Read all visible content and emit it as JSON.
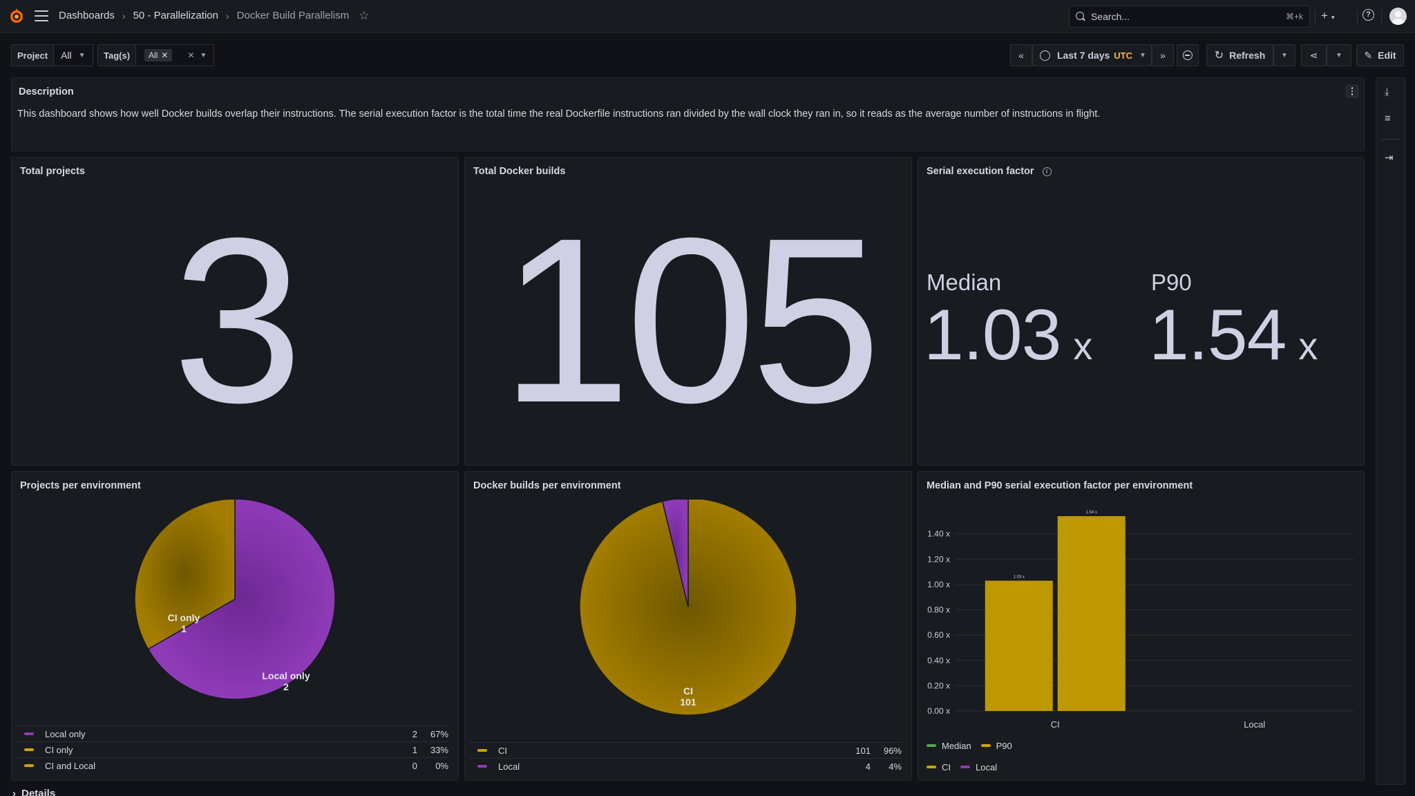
{
  "topbar": {
    "breadcrumbs": [
      "Dashboards",
      "50 - Parallelization",
      "Docker Build Parallelism"
    ],
    "search_placeholder": "Search...",
    "search_shortcut": "⌘+k",
    "icons": [
      "grafana-logo-icon",
      "menu-icon",
      "star-icon",
      "search-icon",
      "plus-icon",
      "help-icon",
      "avatar"
    ]
  },
  "variables": {
    "project_label": "Project",
    "project_value": "All",
    "tags_label": "Tag(s)",
    "tags_value": "All"
  },
  "controls": {
    "time_range": "Last 7 days",
    "timezone": "UTC",
    "refresh_label": "Refresh",
    "edit_label": "Edit"
  },
  "description": {
    "title": "Description",
    "text": "This dashboard shows how well Docker builds overlap their instructions. The serial execution factor is the total time the real Dockerfile instructions ran divided by the wall clock they ran in, so it reads as the average number of instructions in flight."
  },
  "stats": {
    "total_projects": {
      "title": "Total projects",
      "value": "3"
    },
    "total_builds": {
      "title": "Total Docker builds",
      "value": "105"
    },
    "serial_factor": {
      "title": "Serial execution factor",
      "median_label": "Median",
      "median_value": "1.03",
      "p90_label": "P90",
      "p90_value": "1.54",
      "unit": "x"
    }
  },
  "colors": {
    "purple": "#8f3bb8",
    "yellow": "#cca300",
    "dark_yellow": "#a37d00",
    "green": "#56a64b"
  },
  "chart_data": [
    {
      "type": "pie",
      "title": "Projects per environment",
      "slices": [
        {
          "name": "Local only",
          "value": 2,
          "percent": "67%",
          "color": "#8f3bb8"
        },
        {
          "name": "CI only",
          "value": 1,
          "percent": "33%",
          "color": "#a37d00"
        },
        {
          "name": "CI and Local",
          "value": 0,
          "percent": "0%",
          "color": "#a37d00"
        }
      ]
    },
    {
      "type": "pie",
      "title": "Docker builds per environment",
      "slices": [
        {
          "name": "CI",
          "value": 101,
          "percent": "96%",
          "color": "#a37d00"
        },
        {
          "name": "Local",
          "value": 4,
          "percent": "4%",
          "color": "#8f3bb8"
        }
      ]
    },
    {
      "type": "bar",
      "title": "Median and P90 serial execution factor per environment",
      "categories": [
        "CI",
        "Local"
      ],
      "series": [
        {
          "name": "Median",
          "values": [
            1.03,
            null
          ],
          "labels": [
            "1.03 x",
            ""
          ],
          "color": "#cca300"
        },
        {
          "name": "P90",
          "values": [
            1.54,
            null
          ],
          "labels": [
            "1.54 x",
            ""
          ],
          "color": "#cca300"
        }
      ],
      "yticks": [
        "0.00 x",
        "0.20 x",
        "0.40 x",
        "0.60 x",
        "0.80 x",
        "1.00 x",
        "1.20 x",
        "1.40 x"
      ],
      "ylim": [
        0,
        1.54
      ],
      "legend": [
        {
          "name": "Median",
          "color": "#56a64b"
        },
        {
          "name": "P90",
          "color": "#cca300"
        },
        {
          "name": "CI",
          "color": "#cca300"
        },
        {
          "name": "Local",
          "color": "#8f3bb8"
        }
      ],
      "legend_position": "bottom",
      "grid": true
    }
  ],
  "footer": {
    "section_label": "Details"
  }
}
